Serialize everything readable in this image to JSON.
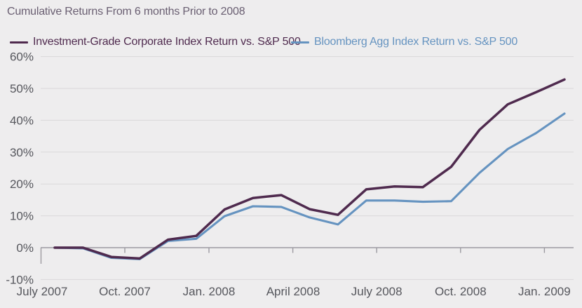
{
  "title": "Cumulative Returns From 6 months Prior to 2008",
  "legend": [
    {
      "label": "Investment-Grade Corporate Index Return vs. S&P 500",
      "color": "#4f2a4e"
    },
    {
      "label": "Bloomberg Agg Index Return vs. S&P 500",
      "color": "#6593c0"
    }
  ],
  "colors": {
    "background": "#eeedee",
    "gridline": "#d9d8da",
    "zero_axis": "#9b9aa0",
    "title_text": "#6a5f72",
    "axis_text": "#55565c",
    "series_ig_corporate": "#4f2a4e",
    "series_bloomberg_agg": "#6593c0"
  },
  "chart_data": {
    "type": "line",
    "title": "Cumulative Returns From 6 months Prior to 2008",
    "xlabel": "",
    "ylabel": "",
    "ylim": [
      -10,
      60
    ],
    "grid": "horizontal",
    "legend_position": "top",
    "x": [
      "Jul 2007",
      "Aug 2007",
      "Sep 2007",
      "Oct 2007",
      "Nov 2007",
      "Dec 2007",
      "Jan 2008",
      "Feb 2008",
      "Mar 2008",
      "Apr 2008",
      "May 2008",
      "Jun 2008",
      "Jul 2008",
      "Aug 2008",
      "Sep 2008",
      "Oct 2008",
      "Nov 2008",
      "Dec 2008",
      "Jan 2009"
    ],
    "x_tick_labels": [
      "July 2007",
      "Oct. 2007",
      "Jan. 2008",
      "April 2008",
      "July 2008",
      "Oct. 2008",
      "Jan. 2009"
    ],
    "y_tick_labels": [
      "60%",
      "50%",
      "40%",
      "30%",
      "20%",
      "10%",
      "0%",
      "-10%"
    ],
    "y_tick_values": [
      60,
      50,
      40,
      30,
      20,
      10,
      0,
      -10
    ],
    "series": [
      {
        "name": "Investment-Grade Corporate Index Return vs. S&P 500",
        "color": "#4f2a4e",
        "values": [
          0.0,
          0.0,
          -2.9,
          -3.4,
          2.5,
          3.7,
          12.0,
          15.6,
          16.5,
          12.1,
          10.3,
          18.3,
          19.2,
          19.0,
          25.4,
          37.0,
          45.0,
          48.8,
          52.8
        ]
      },
      {
        "name": "Bloomberg Agg Index Return vs. S&P 500",
        "color": "#6593c0",
        "values": [
          0.0,
          -0.2,
          -3.2,
          -3.6,
          2.1,
          2.8,
          9.9,
          13.0,
          12.8,
          9.5,
          7.3,
          14.8,
          14.8,
          14.4,
          14.6,
          23.5,
          31.0,
          36.0,
          42.1
        ]
      }
    ]
  }
}
